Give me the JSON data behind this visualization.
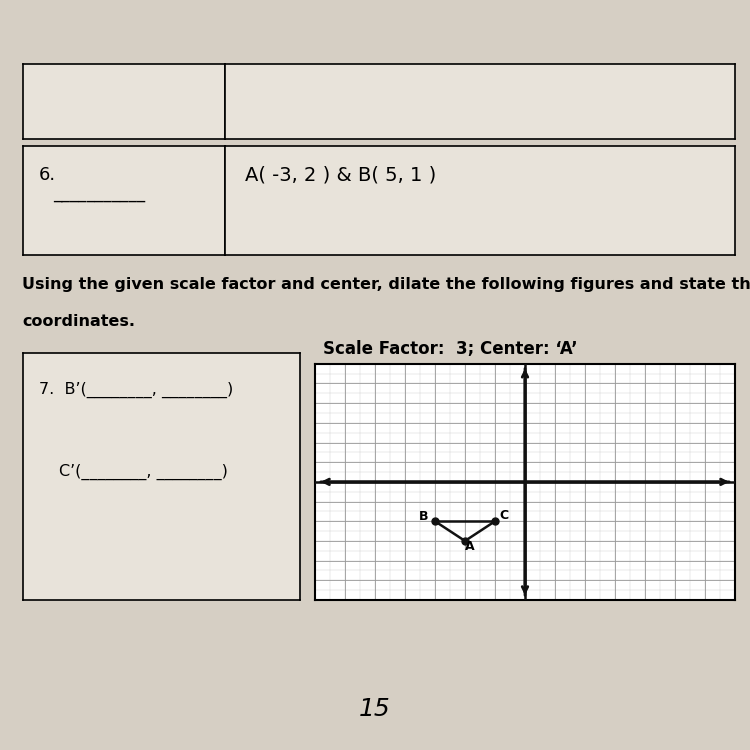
{
  "page_bg": "#d6cfc4",
  "table_bg": "#e8e3da",
  "grid_bg": "#ffffff",
  "problem6_label": "6.",
  "problem6_answer_line": "___________",
  "problem6_content": "A( -3, 2 ) & B( 5, 1 )",
  "problem7_b_prime": "B’(________, ________)",
  "problem7_c_prime": "C’(________, ________)",
  "scale_factor_text": "Scale Factor:  3; Center: ‘A’",
  "instr_line1": "Using the given scale factor and center, dilate the following figures and state the",
  "instr_line2": "coordinates.",
  "grid_xlim": [
    -7,
    7
  ],
  "grid_ylim": [
    -6,
    6
  ],
  "grid_color": "#aaaaaa",
  "axis_color": "#111111",
  "point_A": [
    -2,
    -3
  ],
  "point_B": [
    -3,
    -2
  ],
  "point_C": [
    -1,
    -2
  ],
  "point_color": "#111111",
  "point_size": 5,
  "triangle_color": "#111111",
  "footer_text": "15"
}
